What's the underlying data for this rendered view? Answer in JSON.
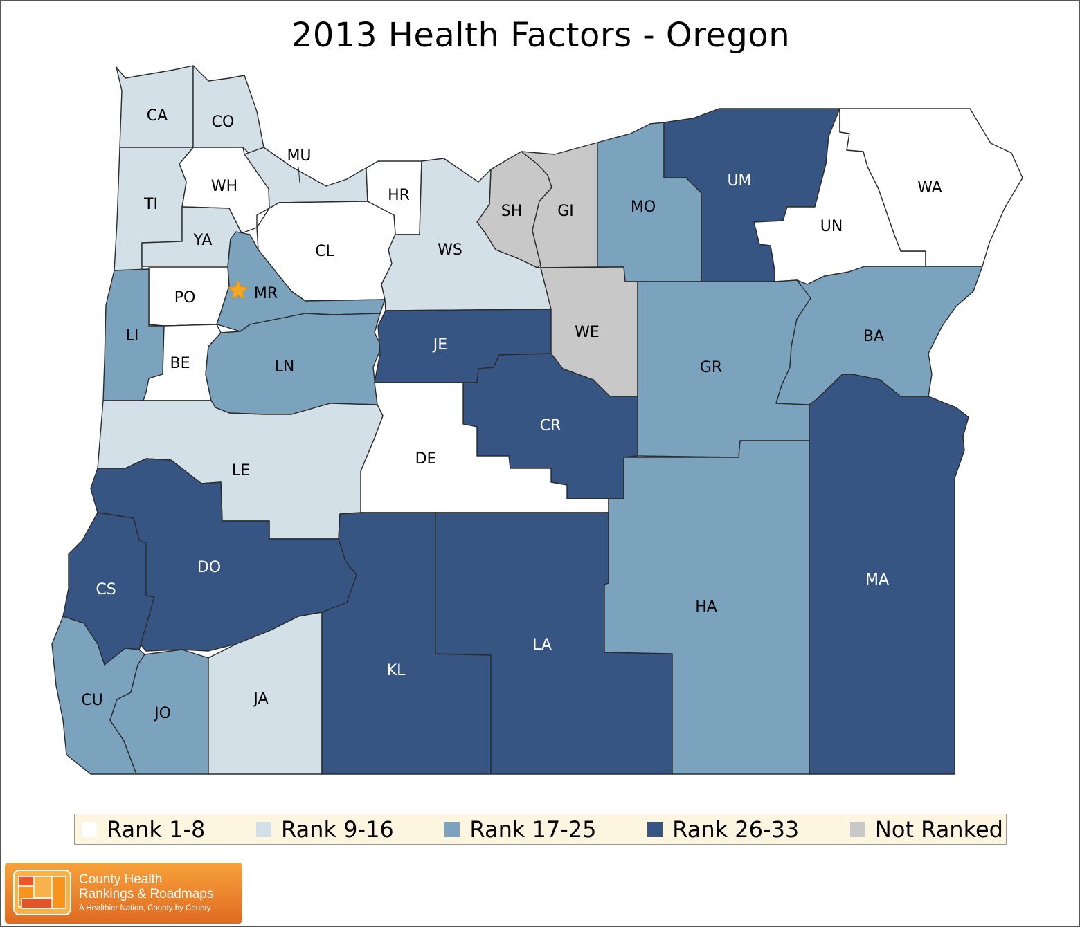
{
  "title": "2013 Health Factors - Oregon",
  "state": "Oregon",
  "year": "2013",
  "colors": {
    "rank_1_8": "#ffffff",
    "rank_9_16": "#d3e0e8",
    "rank_17_25": "#7ba3be",
    "rank_26_33": "#375583",
    "not_ranked": "#c8c8c8",
    "marker": "#f5a623"
  },
  "legend": [
    {
      "label": "Rank 1-8",
      "category": "rank_1_8"
    },
    {
      "label": "Rank 9-16",
      "category": "rank_9_16"
    },
    {
      "label": "Rank 17-25",
      "category": "rank_17_25"
    },
    {
      "label": "Rank 26-33",
      "category": "rank_26_33"
    },
    {
      "label": "Not Ranked",
      "category": "not_ranked"
    }
  ],
  "counties": [
    {
      "code": "CA",
      "category": "rank_9_16"
    },
    {
      "code": "CO",
      "category": "rank_9_16"
    },
    {
      "code": "MU",
      "category": "rank_9_16"
    },
    {
      "code": "WH",
      "category": "rank_1_8"
    },
    {
      "code": "TI",
      "category": "rank_9_16"
    },
    {
      "code": "YA",
      "category": "rank_9_16"
    },
    {
      "code": "HR",
      "category": "rank_1_8"
    },
    {
      "code": "CL",
      "category": "rank_1_8"
    },
    {
      "code": "SH",
      "category": "not_ranked"
    },
    {
      "code": "GI",
      "category": "not_ranked"
    },
    {
      "code": "MO",
      "category": "rank_17_25"
    },
    {
      "code": "UM",
      "category": "rank_26_33"
    },
    {
      "code": "UN",
      "category": "rank_1_8"
    },
    {
      "code": "WA",
      "category": "rank_1_8"
    },
    {
      "code": "WS",
      "category": "rank_9_16"
    },
    {
      "code": "PO",
      "category": "rank_1_8"
    },
    {
      "code": "MR",
      "category": "rank_17_25"
    },
    {
      "code": "LI",
      "category": "rank_17_25"
    },
    {
      "code": "BE",
      "category": "rank_1_8"
    },
    {
      "code": "LN",
      "category": "rank_17_25"
    },
    {
      "code": "JE",
      "category": "rank_26_33"
    },
    {
      "code": "WE",
      "category": "not_ranked"
    },
    {
      "code": "GR",
      "category": "rank_17_25"
    },
    {
      "code": "BA",
      "category": "rank_17_25"
    },
    {
      "code": "CR",
      "category": "rank_26_33"
    },
    {
      "code": "DE",
      "category": "rank_1_8"
    },
    {
      "code": "LE",
      "category": "rank_9_16"
    },
    {
      "code": "DO",
      "category": "rank_26_33"
    },
    {
      "code": "CS",
      "category": "rank_26_33"
    },
    {
      "code": "CU",
      "category": "rank_17_25"
    },
    {
      "code": "JO",
      "category": "rank_17_25"
    },
    {
      "code": "JA",
      "category": "rank_9_16"
    },
    {
      "code": "KL",
      "category": "rank_26_33"
    },
    {
      "code": "LA",
      "category": "rank_26_33"
    },
    {
      "code": "HA",
      "category": "rank_17_25"
    },
    {
      "code": "MA",
      "category": "rank_26_33"
    }
  ],
  "capital_marker": {
    "county": "MR",
    "icon": "star-icon"
  },
  "logo": {
    "line1": "County Health",
    "line2": "Rankings & Roadmaps",
    "tagline": "A Healthier Nation, County by County",
    "icon": "map-grid-icon"
  }
}
